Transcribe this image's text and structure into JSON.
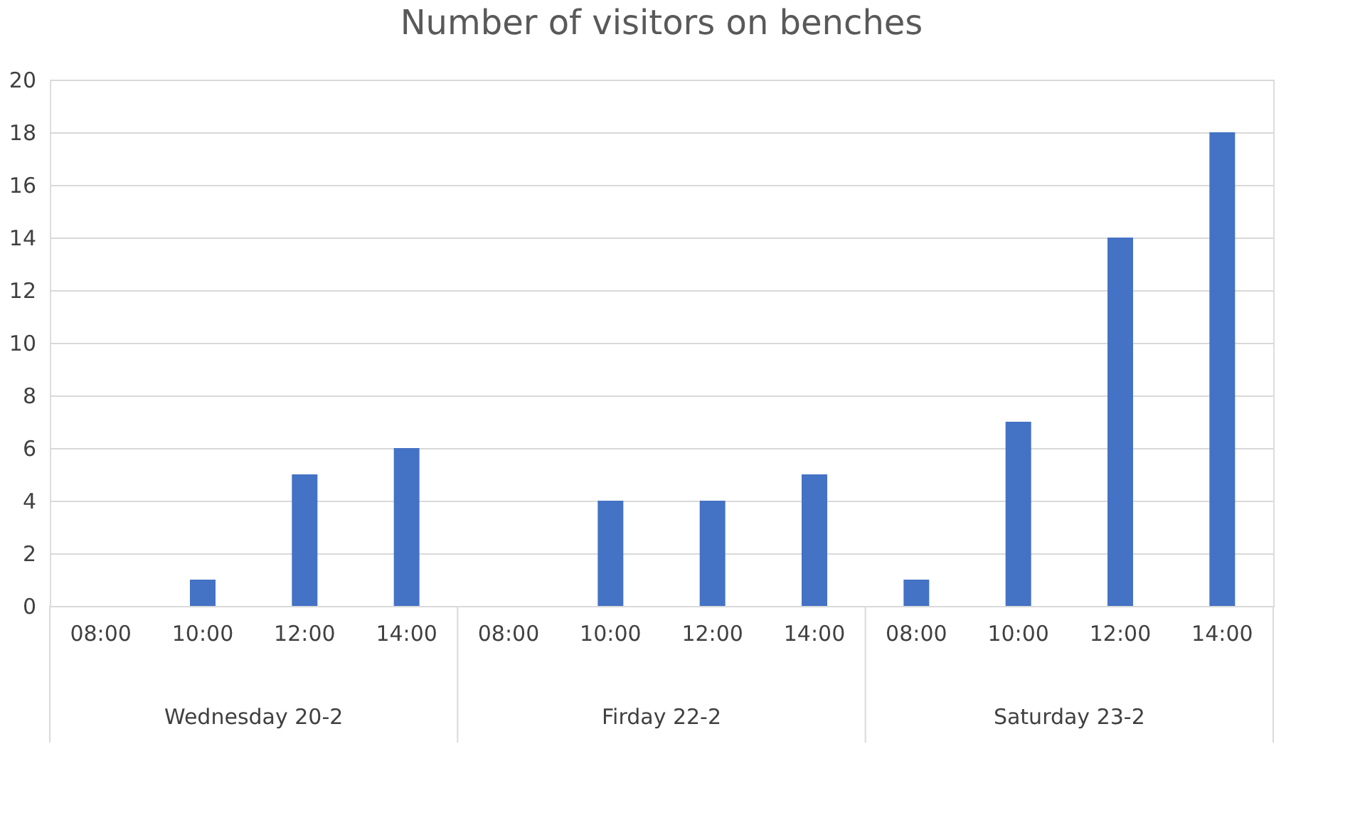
{
  "chart_data": {
    "type": "bar",
    "title": "Number of visitors on benches",
    "categories": [
      "08:00",
      "10:00",
      "12:00",
      "14:00",
      "08:00",
      "10:00",
      "12:00",
      "14:00",
      "08:00",
      "10:00",
      "12:00",
      "14:00"
    ],
    "values": [
      0,
      1,
      5,
      6,
      0,
      4,
      4,
      5,
      1,
      7,
      14,
      18
    ],
    "color": "#4472c4",
    "ylim": [
      0,
      20
    ],
    "yticks": [
      0,
      2,
      4,
      6,
      8,
      10,
      12,
      14,
      16,
      18,
      20
    ],
    "grid": "y",
    "annotations": [
      "Wednesday 20-2",
      "Firday 22-2",
      "Saturday 23-2"
    ]
  }
}
